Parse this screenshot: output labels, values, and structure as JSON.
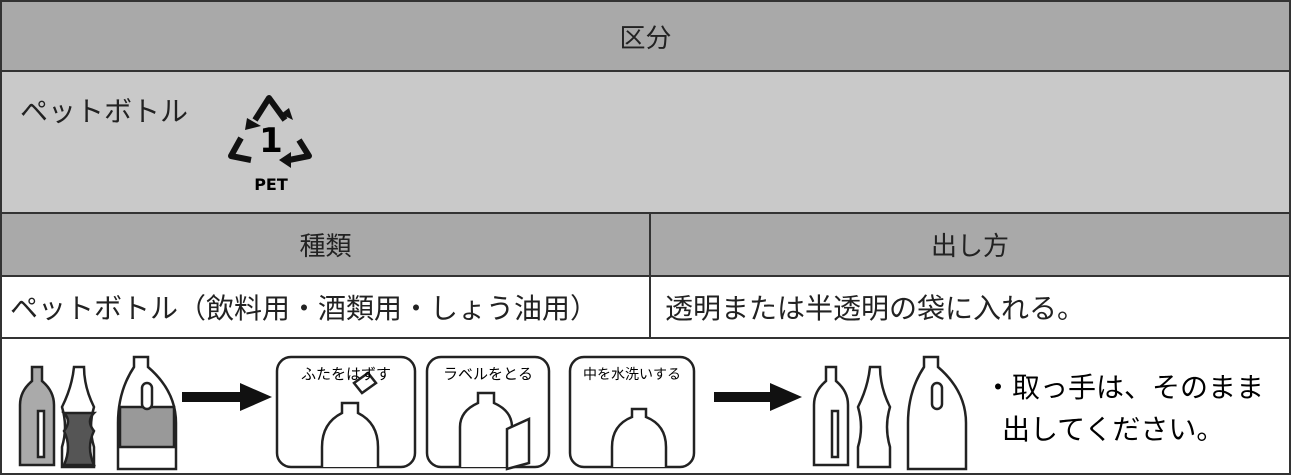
{
  "header": {
    "title": "区分"
  },
  "category": {
    "name": "ペットボトル",
    "symbol_number": "1",
    "symbol_label": "PET"
  },
  "table": {
    "columns": [
      "種類",
      "出し方"
    ],
    "rows": [
      [
        "ペットボトル（飲料用・酒類用・しょう油用）",
        "透明または半透明の袋に入れる。"
      ]
    ]
  },
  "steps": [
    {
      "label": "ふたをはずす"
    },
    {
      "label": "ラベルをとる"
    },
    {
      "label": "中を水洗いする"
    }
  ],
  "note": {
    "lines": [
      "・取っ手は、そのまま",
      "出してください。"
    ]
  }
}
